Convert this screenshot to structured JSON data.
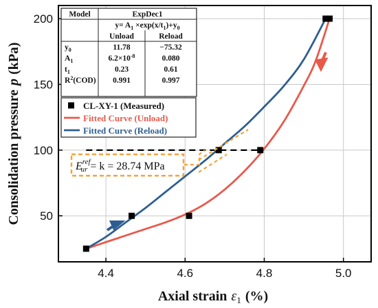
{
  "chart_data": {
    "type": "scatter",
    "xlabel": "Axial strain",
    "xlabel_symbol": "ε",
    "xlabel_sub": "1",
    "xlabel_unit": "(%)",
    "ylabel": "Consolidation pressure",
    "ylabel_symbol": "p",
    "ylabel_unit": "(kPa)",
    "xlim": [
      4.28,
      5.07
    ],
    "ylim": [
      15,
      210
    ],
    "xticks": [
      "4.4",
      "4.6",
      "4.8",
      "5.0"
    ],
    "xtick_values": [
      4.4,
      4.6,
      4.8,
      5.0
    ],
    "yticks": [
      "50",
      "100",
      "150",
      "200"
    ],
    "ytick_values": [
      50,
      100,
      150,
      200
    ],
    "grid": true,
    "legend_position": "upper-left",
    "series": [
      {
        "name": "CL-XY-1 (Measured)",
        "kind": "scatter",
        "color": "#000000",
        "x": [
          4.35,
          4.465,
          4.61,
          4.685,
          4.79,
          4.955,
          4.965
        ],
        "y": [
          25,
          50,
          50,
          100,
          100,
          200,
          200
        ]
      },
      {
        "name": "Fitted Curve (Unload)",
        "kind": "line",
        "color": "#e8594c",
        "x": [
          4.35,
          4.4,
          4.45,
          4.5,
          4.55,
          4.6,
          4.65,
          4.7,
          4.75,
          4.8,
          4.85,
          4.9,
          4.93,
          4.965
        ],
        "y": [
          25,
          30,
          35,
          40,
          45,
          51,
          59,
          70,
          84,
          101,
          122,
          149,
          168,
          200
        ]
      },
      {
        "name": "Fitted Curve (Reload)",
        "kind": "line",
        "color": "#2e5e91",
        "x": [
          4.35,
          4.4,
          4.45,
          4.5,
          4.55,
          4.6,
          4.65,
          4.7,
          4.75,
          4.8,
          4.85,
          4.9,
          4.955
        ],
        "y": [
          25,
          34,
          45,
          56,
          68,
          80,
          92,
          105,
          118,
          133,
          149,
          169,
          200
        ]
      }
    ],
    "reference_line": {
      "y": 100,
      "x_from": 4.35,
      "x_to": 4.79,
      "style": "dashed"
    },
    "annotation": {
      "lhs_symbol": "E",
      "lhs_sup": "ref",
      "lhs_sub": "ur",
      "rhs": "= k = 28.74 MPa",
      "box_color": "#f5a23a"
    },
    "fit_table": {
      "header_model": "Model",
      "header_name": "ExpDec1",
      "equation": "y= A",
      "equation_parts": {
        "a": "y= A",
        "a_sub": "1",
        "b": " ×exp(x/t",
        "b_sub": "1",
        "c": ")+y",
        "c_sub": "0"
      },
      "col_unload": "Unload",
      "col_reload": "Reload",
      "rows": [
        {
          "param": "y",
          "param_sub": "0",
          "unload": "11.78",
          "reload": "−75.32"
        },
        {
          "param": "A",
          "param_sub": "1",
          "unload": "6.2×10",
          "unload_sup": "-8",
          "reload": "0.080"
        },
        {
          "param": "t",
          "param_sub": "1",
          "unload": "0.23",
          "reload": "0.61"
        },
        {
          "param": "R",
          "param_sup": "2",
          "param_rest": "(COD)",
          "unload": "0.991",
          "reload": "0.997"
        }
      ]
    }
  }
}
